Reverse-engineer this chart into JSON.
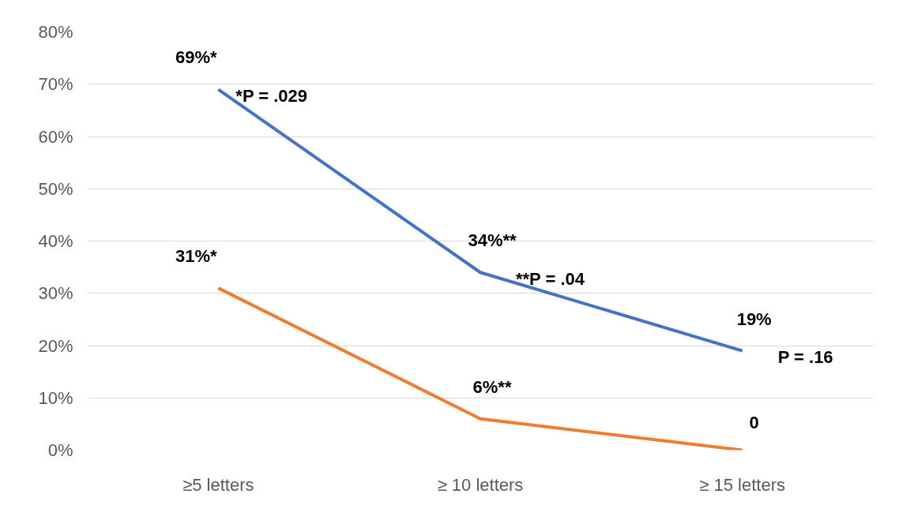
{
  "chart_data": {
    "type": "line",
    "categories": [
      "≥5 letters",
      "≥ 10 letters",
      "≥ 15 letters"
    ],
    "series": [
      {
        "color": "#4472c4",
        "values": [
          69,
          34,
          19
        ],
        "value_labels": [
          "69%*",
          "34%**",
          "19%"
        ]
      },
      {
        "color": "#ed7d31",
        "values": [
          31,
          6,
          0
        ],
        "value_labels": [
          "31%*",
          "6%**",
          "0"
        ]
      }
    ],
    "ylim": [
      0,
      80
    ],
    "yticks": [
      {
        "value": 0,
        "label": "0%"
      },
      {
        "value": 10,
        "label": "10%"
      },
      {
        "value": 20,
        "label": "20%"
      },
      {
        "value": 30,
        "label": "30%"
      },
      {
        "value": 40,
        "label": "40%"
      },
      {
        "value": 50,
        "label": "50%"
      },
      {
        "value": 60,
        "label": "60%"
      },
      {
        "value": 70,
        "label": "70%"
      },
      {
        "value": 80,
        "label": "80%"
      }
    ],
    "grid": "y",
    "marker": "none",
    "line_style": "solid",
    "annotations": [
      "*P = .029",
      "**P = .04",
      "P = .16"
    ]
  }
}
